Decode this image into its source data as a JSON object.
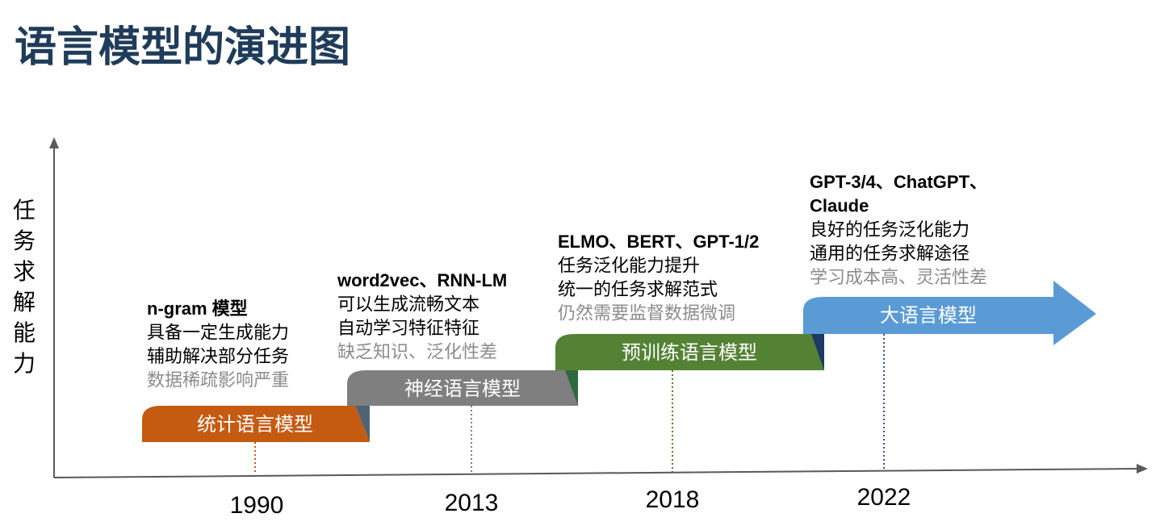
{
  "title": "语言模型的演进图",
  "y_axis_label": "任务求解能力",
  "stages": [
    {
      "label": "统计语言模型",
      "year": "1990",
      "heading": [
        "n-gram 模型"
      ],
      "features": [
        "具备一定生成能力",
        "辅助解决部分任务"
      ],
      "limitation": "数据稀疏影响严重"
    },
    {
      "label": "神经语言模型",
      "year": "2013",
      "heading": [
        "word2vec、RNN-LM"
      ],
      "features": [
        "可以生成流畅文本",
        "自动学习特征特征"
      ],
      "limitation": "缺乏知识、泛化性差"
    },
    {
      "label": "预训练语言模型",
      "year": "2018",
      "heading": [
        "ELMO、BERT、GPT-1/2"
      ],
      "features": [
        "任务泛化能力提升",
        "统一的任务求解范式"
      ],
      "limitation": "仍然需要监督数据微调"
    },
    {
      "label": "大语言模型",
      "year": "2022",
      "heading": [
        "GPT-3/4、ChatGPT、",
        "Claude"
      ],
      "features": [
        "良好的任务泛化能力",
        "通用的任务求解途径"
      ],
      "limitation": "学习成本高、灵活性差"
    }
  ]
}
